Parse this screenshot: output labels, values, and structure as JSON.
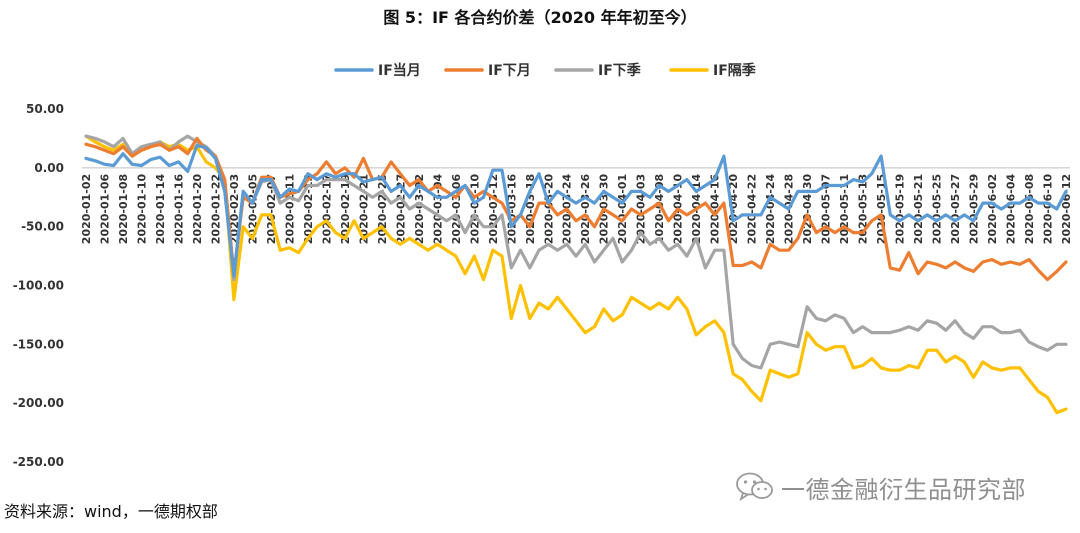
{
  "chart_data": {
    "type": "line",
    "title": "图 5：IF 各合约价差（2020 年年初至今）",
    "xlabel": "",
    "ylabel": "",
    "ylim": [
      -250,
      50
    ],
    "yticks": [
      "50.00",
      "0.00",
      "-50.00",
      "-100.00",
      "-150.00",
      "-200.00",
      "-250.00"
    ],
    "grid": false,
    "legend_position": "top",
    "categories": [
      "2020-01-02",
      "2020-01-03",
      "2020-01-06",
      "2020-01-07",
      "2020-01-08",
      "2020-01-09",
      "2020-01-10",
      "2020-01-13",
      "2020-01-14",
      "2020-01-15",
      "2020-01-16",
      "2020-01-17",
      "2020-01-20",
      "2020-01-21",
      "2020-01-22",
      "2020-01-23",
      "2020-02-03",
      "2020-02-04",
      "2020-02-05",
      "2020-02-06",
      "2020-02-07",
      "2020-02-10",
      "2020-02-11",
      "2020-02-12",
      "2020-02-13",
      "2020-02-14",
      "2020-02-17",
      "2020-02-18",
      "2020-02-19",
      "2020-02-20",
      "2020-02-21",
      "2020-02-24",
      "2020-02-25",
      "2020-02-26",
      "2020-02-27",
      "2020-02-28",
      "2020-03-02",
      "2020-03-03",
      "2020-03-04",
      "2020-03-05",
      "2020-03-06",
      "2020-03-09",
      "2020-03-10",
      "2020-03-11",
      "2020-03-12",
      "2020-03-13",
      "2020-03-16",
      "2020-03-17",
      "2020-03-18",
      "2020-03-19",
      "2020-03-20",
      "2020-03-23",
      "2020-03-24",
      "2020-03-25",
      "2020-03-26",
      "2020-03-27",
      "2020-03-30",
      "2020-03-31",
      "2020-04-01",
      "2020-04-02",
      "2020-04-03",
      "2020-04-07",
      "2020-04-08",
      "2020-04-09",
      "2020-04-10",
      "2020-04-13",
      "2020-04-14",
      "2020-04-15",
      "2020-04-16",
      "2020-04-17",
      "2020-04-20",
      "2020-04-21",
      "2020-04-22",
      "2020-04-23",
      "2020-04-24",
      "2020-04-27",
      "2020-04-28",
      "2020-04-29",
      "2020-04-30",
      "2020-05-06",
      "2020-05-07",
      "2020-05-08",
      "2020-05-11",
      "2020-05-12",
      "2020-05-13",
      "2020-05-14",
      "2020-05-15",
      "2020-05-18",
      "2020-05-19",
      "2020-05-20",
      "2020-05-21",
      "2020-05-22",
      "2020-05-25",
      "2020-05-26",
      "2020-05-27",
      "2020-05-28",
      "2020-05-29",
      "2020-06-01",
      "2020-06-02",
      "2020-06-03",
      "2020-06-04",
      "2020-06-05",
      "2020-06-08",
      "2020-06-09",
      "2020-06-10",
      "2020-06-11",
      "2020-06-12"
    ],
    "tick_labels": [
      "2020-01-02",
      "2020-01-06",
      "2020-01-08",
      "2020-01-10",
      "2020-01-14",
      "2020-01-16",
      "2020-01-20",
      "2020-01-22",
      "2020-02-03",
      "2020-02-05",
      "2020-02-07",
      "2020-02-11",
      "2020-02-13",
      "2020-02-17",
      "2020-02-19",
      "2020-02-21",
      "2020-02-25",
      "2020-02-27",
      "2020-03-02",
      "2020-03-04",
      "2020-03-06",
      "2020-03-10",
      "2020-03-12",
      "2020-03-16",
      "2020-03-18",
      "2020-03-20",
      "2020-03-24",
      "2020-03-26",
      "2020-03-30",
      "2020-04-01",
      "2020-04-03",
      "2020-04-08",
      "2020-04-10",
      "2020-04-14",
      "2020-04-16",
      "2020-04-20",
      "2020-04-22",
      "2020-04-24",
      "2020-04-28",
      "2020-04-30",
      "2020-05-07",
      "2020-05-11",
      "2020-05-13",
      "2020-05-15",
      "2020-05-19",
      "2020-05-21",
      "2020-05-25",
      "2020-05-27",
      "2020-05-29",
      "2020-06-02",
      "2020-06-04",
      "2020-06-08",
      "2020-06-10",
      "2020-06-12"
    ],
    "series": [
      {
        "name": "IF当月",
        "color": "#5b9bd5",
        "values": [
          8,
          6,
          3,
          2,
          12,
          3,
          2,
          7,
          9,
          2,
          5,
          -3,
          19,
          17,
          8,
          -20,
          -92,
          -20,
          -30,
          -10,
          -10,
          -25,
          -18,
          -20,
          -5,
          -10,
          -5,
          -8,
          -5,
          -5,
          -12,
          -10,
          -8,
          -20,
          -15,
          -25,
          -15,
          -20,
          -25,
          -25,
          -20,
          -15,
          -30,
          -25,
          -2,
          -2,
          -50,
          -40,
          -20,
          -5,
          -30,
          -20,
          -25,
          -30,
          -25,
          -30,
          -20,
          -25,
          -30,
          -20,
          -20,
          -25,
          -15,
          -20,
          -15,
          -10,
          -20,
          -15,
          -10,
          10,
          -45,
          -40,
          -40,
          -40,
          -25,
          -30,
          -35,
          -20,
          -20,
          -20,
          -15,
          -15,
          -15,
          -10,
          -12,
          -5,
          10,
          -40,
          -45,
          -40,
          -45,
          -40,
          -45,
          -40,
          -45,
          -40,
          -45,
          -30,
          -30,
          -35,
          -30,
          -30,
          -25,
          -30,
          -30,
          -35,
          -20
        ]
      },
      {
        "name": "IF下月",
        "color": "#ed7d31",
        "values": [
          20,
          18,
          15,
          12,
          18,
          10,
          15,
          18,
          20,
          15,
          18,
          12,
          25,
          15,
          10,
          -10,
          -90,
          -25,
          -30,
          -8,
          -8,
          -25,
          -22,
          -20,
          -10,
          -5,
          5,
          -5,
          0,
          -8,
          8,
          -10,
          -8,
          5,
          -5,
          -15,
          -10,
          -20,
          -15,
          -20,
          -25,
          -15,
          -25,
          -20,
          -25,
          -30,
          -45,
          -40,
          -50,
          -30,
          -30,
          -40,
          -35,
          -45,
          -40,
          -50,
          -35,
          -40,
          -45,
          -35,
          -40,
          -35,
          -30,
          -45,
          -35,
          -40,
          -35,
          -30,
          -40,
          -30,
          -83,
          -83,
          -80,
          -85,
          -65,
          -70,
          -70,
          -60,
          -40,
          -55,
          -50,
          -55,
          -50,
          -55,
          -55,
          -45,
          -40,
          -85,
          -87,
          -72,
          -90,
          -80,
          -82,
          -85,
          -80,
          -85,
          -88,
          -80,
          -78,
          -82,
          -80,
          -82,
          -78,
          -87,
          -95,
          -88,
          -80
        ]
      },
      {
        "name": "IF下季",
        "color": "#a5a5a5",
        "values": [
          27,
          25,
          22,
          18,
          25,
          12,
          18,
          20,
          22,
          15,
          22,
          27,
          22,
          18,
          10,
          -10,
          -95,
          -20,
          -30,
          -12,
          -10,
          -30,
          -25,
          -28,
          -15,
          -15,
          -10,
          -10,
          -10,
          -15,
          -20,
          -25,
          -20,
          -30,
          -25,
          -35,
          -30,
          -35,
          -40,
          -45,
          -40,
          -55,
          -40,
          -50,
          -50,
          -40,
          -85,
          -70,
          -85,
          -70,
          -65,
          -70,
          -65,
          -75,
          -65,
          -80,
          -70,
          -60,
          -80,
          -70,
          -55,
          -65,
          -60,
          -70,
          -65,
          -75,
          -60,
          -85,
          -70,
          -70,
          -150,
          -162,
          -168,
          -170,
          -150,
          -148,
          -150,
          -152,
          -118,
          -128,
          -130,
          -125,
          -128,
          -140,
          -135,
          -140,
          -140,
          -140,
          -138,
          -135,
          -138,
          -130,
          -132,
          -138,
          -130,
          -140,
          -145,
          -135,
          -135,
          -140,
          -140,
          -138,
          -148,
          -152,
          -155,
          -150,
          -150
        ]
      },
      {
        "name": "IF隔季",
        "color": "#ffc000",
        "values": [
          27,
          22,
          18,
          15,
          20,
          10,
          15,
          18,
          22,
          18,
          20,
          15,
          18,
          5,
          0,
          -10,
          -112,
          -50,
          -60,
          -40,
          -40,
          -70,
          -68,
          -72,
          -60,
          -50,
          -45,
          -55,
          -60,
          -45,
          -60,
          -55,
          -50,
          -60,
          -65,
          -60,
          -65,
          -70,
          -65,
          -70,
          -75,
          -90,
          -75,
          -95,
          -70,
          -75,
          -128,
          -100,
          -128,
          -115,
          -120,
          -110,
          -120,
          -130,
          -140,
          -135,
          -120,
          -130,
          -125,
          -110,
          -115,
          -120,
          -115,
          -120,
          -110,
          -120,
          -142,
          -135,
          -130,
          -140,
          -175,
          -180,
          -190,
          -198,
          -172,
          -175,
          -178,
          -175,
          -140,
          -150,
          -155,
          -152,
          -152,
          -170,
          -168,
          -162,
          -170,
          -172,
          -172,
          -168,
          -170,
          -155,
          -155,
          -165,
          -160,
          -165,
          -178,
          -165,
          -170,
          -172,
          -170,
          -170,
          -180,
          -190,
          -195,
          -208,
          -205
        ]
      }
    ]
  },
  "source_note": "资料来源：wind，一德期权部",
  "watermark": {
    "text": "一德金融衍生品研究部",
    "icon": "wechat-icon"
  }
}
